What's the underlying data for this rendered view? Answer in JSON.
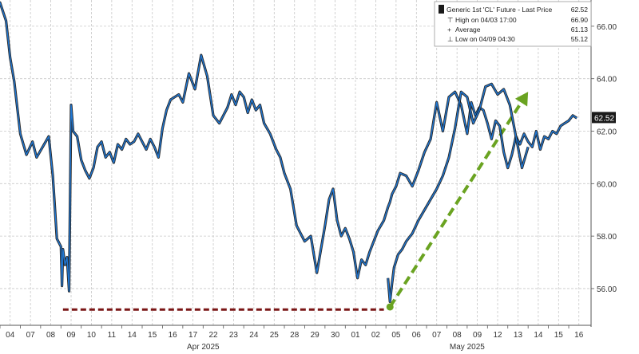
{
  "chart_data": {
    "type": "line",
    "title": "Generic 1st 'CL' Future - Last Price",
    "last_price_label": "62.52",
    "legend": {
      "main_label": "Generic 1st 'CL' Future - Last Price",
      "main_value": "62.52",
      "stats": [
        {
          "icon": "high-icon",
          "label": "High on 04/03 17:00",
          "value": "66.90"
        },
        {
          "icon": "average-icon",
          "label": "Average",
          "value": "61.13"
        },
        {
          "icon": "low-icon",
          "label": "Low on 04/09 04:30",
          "value": "55.12"
        }
      ]
    },
    "x_ticks": [
      "04",
      "07",
      "08",
      "09",
      "10",
      "11",
      "14",
      "15",
      "16",
      "17",
      "22",
      "23",
      "24",
      "25",
      "28",
      "29",
      "30",
      "01",
      "02",
      "05",
      "06",
      "07",
      "08",
      "09",
      "12",
      "13",
      "14",
      "15",
      "16"
    ],
    "month_labels": [
      {
        "label": "Apr 2025",
        "at_tick": 10
      },
      {
        "label": "May 2025",
        "at_tick": 23
      }
    ],
    "xlim": [
      0,
      29.1
    ],
    "ylim": [
      54.6,
      67.0
    ],
    "y_ticks": [
      56,
      58,
      60,
      62,
      64,
      66
    ],
    "y_tick_labels": [
      "56.00",
      "58.00",
      "60.00",
      "62.00",
      "64.00",
      "66.00"
    ],
    "grid": true,
    "legend_position": "top-right",
    "series": [
      {
        "color": "#1f77d4",
        "x": [
          -0.4,
          0.0,
          0.3,
          0.5,
          0.7,
          1.0,
          1.3,
          1.6,
          1.8,
          2.1,
          2.4,
          2.6,
          2.8,
          3.0,
          3.05,
          3.1,
          3.2,
          3.3,
          3.4,
          3.5,
          3.6,
          3.8,
          4.0,
          4.2,
          4.4,
          4.6,
          4.8,
          5.0,
          5.2,
          5.4,
          5.6,
          5.8,
          6.0,
          6.2,
          6.4,
          6.6,
          6.8,
          7.0,
          7.2,
          7.4,
          7.6,
          7.8,
          8.0,
          8.2,
          8.4,
          8.6,
          8.8,
          9.0,
          9.3,
          9.6,
          9.9,
          10.2,
          10.5,
          10.8,
          11.0,
          11.2,
          11.4,
          11.6,
          11.8,
          12.0,
          12.2,
          12.4,
          12.6,
          12.8,
          13.0,
          13.3,
          13.6,
          13.8,
          14.0,
          14.3,
          14.6,
          15.0,
          15.3,
          15.6,
          16.0,
          16.2,
          16.4,
          16.6,
          16.8,
          17.0,
          17.2,
          17.4,
          17.6,
          17.8,
          18.0,
          18.2,
          18.4,
          18.6,
          18.9,
          19.1,
          19.2,
          19.3,
          19.5,
          19.7,
          20.0,
          20.3,
          20.6,
          20.9,
          21.2,
          21.5,
          21.8,
          22.1,
          22.4,
          22.7,
          23.0,
          23.2,
          23.4,
          23.6,
          23.8,
          24.0,
          24.2,
          24.4,
          24.6,
          24.8,
          25.0,
          25.2,
          25.4,
          25.6,
          25.8,
          26.0,
          26.2,
          26.4,
          26.6,
          26.8,
          27.0,
          27.2,
          27.4,
          27.6,
          27.8,
          28.0,
          28.2,
          28.4
        ],
        "y": [
          66.6,
          66.9,
          66.2,
          64.8,
          63.9,
          61.9,
          61.1,
          61.6,
          61.0,
          61.4,
          61.8,
          60.3,
          57.9,
          57.6,
          56.1,
          57.5,
          56.9,
          57.2,
          55.9,
          63.0,
          62.0,
          61.8,
          60.9,
          60.5,
          60.2,
          60.6,
          61.4,
          61.6,
          61.0,
          61.2,
          60.8,
          61.5,
          61.3,
          61.7,
          61.5,
          61.6,
          61.9,
          61.6,
          61.3,
          61.7,
          61.4,
          61.0,
          62.1,
          62.8,
          63.2,
          63.3,
          63.4,
          63.1,
          64.2,
          63.6,
          64.9,
          64.1,
          62.6,
          62.3,
          62.6,
          62.9,
          63.4,
          63.0,
          63.5,
          63.3,
          62.7,
          63.2,
          62.8,
          63.0,
          62.3,
          61.9,
          61.3,
          61.0,
          60.4,
          59.8,
          58.4,
          57.8,
          58.0,
          56.6,
          58.4,
          59.4,
          59.8,
          58.6,
          58.0,
          58.3,
          57.9,
          57.4,
          56.4,
          57.1,
          56.9,
          57.4,
          57.8,
          58.2,
          58.6,
          59.1,
          59.3,
          59.6,
          59.9,
          60.4,
          60.3,
          59.9,
          60.5,
          61.2,
          61.7,
          63.1,
          62.0,
          63.3,
          63.5,
          63.0,
          61.9,
          63.1,
          62.6,
          62.9,
          62.8,
          62.3,
          61.7,
          62.4,
          62.2,
          61.2,
          60.6,
          61.1,
          61.8,
          61.5,
          61.9,
          61.6,
          61.4,
          62.0,
          61.3,
          61.8,
          61.7,
          62.0,
          61.9,
          62.2,
          62.3,
          62.4,
          62.6,
          62.5
        ],
        "x2": [
          19.1,
          19.2,
          19.3,
          19.4,
          19.6,
          19.8,
          20.0,
          20.3,
          20.6,
          20.9,
          21.2,
          21.5,
          21.8,
          22.1,
          22.4,
          22.7,
          23.0,
          23.3,
          23.6,
          23.9,
          24.2,
          24.5,
          24.8,
          25.1,
          25.4,
          25.7,
          26.0
        ],
        "y2": [
          56.4,
          55.5,
          56.2,
          56.8,
          57.3,
          57.5,
          57.8,
          58.1,
          58.6,
          59.0,
          59.4,
          59.8,
          60.3,
          61.0,
          62.1,
          63.5,
          63.3,
          62.3,
          62.8,
          63.7,
          63.8,
          63.4,
          63.6,
          63.0,
          61.8,
          60.6,
          61.4
        ]
      }
    ],
    "annotations": [
      {
        "type": "dashed-line",
        "name": "low-support-line",
        "color": "#7a1616",
        "from": {
          "x": 3.1,
          "y": 55.2
        },
        "to": {
          "x": 18.9,
          "y": 55.2
        }
      },
      {
        "type": "dashed-arrow",
        "name": "rebound-arrow",
        "color": "#6aa321",
        "from": {
          "x": 19.2,
          "y": 55.3
        },
        "to": {
          "x": 26.0,
          "y": 63.5
        }
      }
    ]
  }
}
